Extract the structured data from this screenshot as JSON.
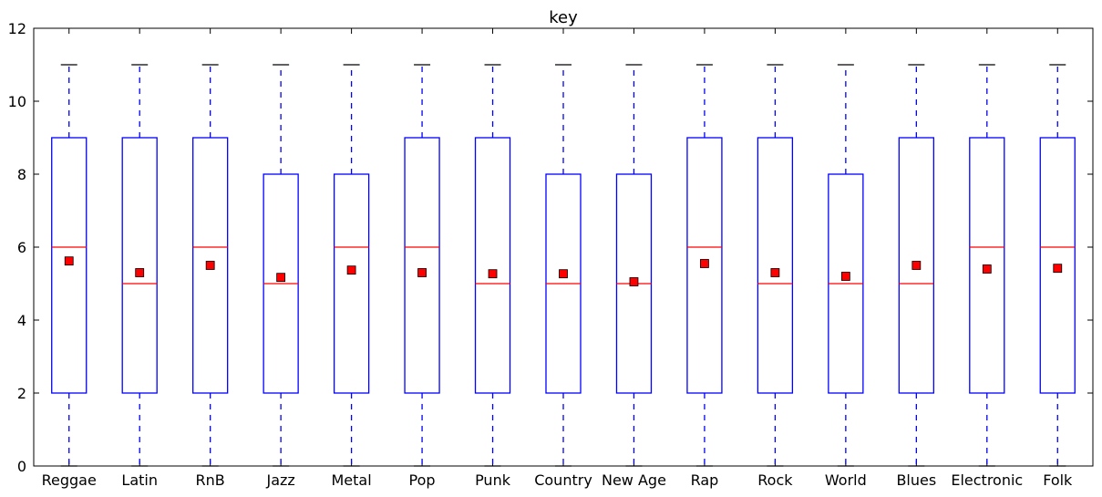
{
  "chart_data": {
    "type": "box",
    "title": "key",
    "xlabel": "",
    "ylabel": "",
    "ylim": [
      0,
      12
    ],
    "yticks": [
      "0",
      "2",
      "4",
      "6",
      "8",
      "10",
      "12"
    ],
    "grid": false,
    "colors": {
      "box": "#0000ff",
      "median": "#ff0000",
      "mean_marker": "#ff0000",
      "cap": "#000000",
      "axis": "#000000"
    },
    "categories": [
      "Reggae",
      "Latin",
      "RnB",
      "Jazz",
      "Metal",
      "Pop",
      "Punk",
      "Country",
      "New Age",
      "Rap",
      "Rock",
      "World",
      "Blues",
      "Electronic",
      "Folk"
    ],
    "boxes": [
      {
        "min": 0,
        "q1": 2,
        "median": 6,
        "q3": 9,
        "max": 11,
        "mean": 5.62
      },
      {
        "min": 0,
        "q1": 2,
        "median": 5,
        "q3": 9,
        "max": 11,
        "mean": 5.3
      },
      {
        "min": 0,
        "q1": 2,
        "median": 6,
        "q3": 9,
        "max": 11,
        "mean": 5.5
      },
      {
        "min": 0,
        "q1": 2,
        "median": 5,
        "q3": 8,
        "max": 11,
        "mean": 5.17
      },
      {
        "min": 0,
        "q1": 2,
        "median": 6,
        "q3": 8,
        "max": 11,
        "mean": 5.37
      },
      {
        "min": 0,
        "q1": 2,
        "median": 6,
        "q3": 9,
        "max": 11,
        "mean": 5.3
      },
      {
        "min": 0,
        "q1": 2,
        "median": 5,
        "q3": 9,
        "max": 11,
        "mean": 5.27
      },
      {
        "min": 0,
        "q1": 2,
        "median": 5,
        "q3": 8,
        "max": 11,
        "mean": 5.27
      },
      {
        "min": 0,
        "q1": 2,
        "median": 5,
        "q3": 8,
        "max": 11,
        "mean": 5.05
      },
      {
        "min": 0,
        "q1": 2,
        "median": 6,
        "q3": 9,
        "max": 11,
        "mean": 5.55
      },
      {
        "min": 0,
        "q1": 2,
        "median": 5,
        "q3": 9,
        "max": 11,
        "mean": 5.3
      },
      {
        "min": 0,
        "q1": 2,
        "median": 5,
        "q3": 8,
        "max": 11,
        "mean": 5.2
      },
      {
        "min": 0,
        "q1": 2,
        "median": 5,
        "q3": 9,
        "max": 11,
        "mean": 5.5
      },
      {
        "min": 0,
        "q1": 2,
        "median": 6,
        "q3": 9,
        "max": 11,
        "mean": 5.4
      },
      {
        "min": 0,
        "q1": 2,
        "median": 6,
        "q3": 9,
        "max": 11,
        "mean": 5.42
      }
    ]
  }
}
